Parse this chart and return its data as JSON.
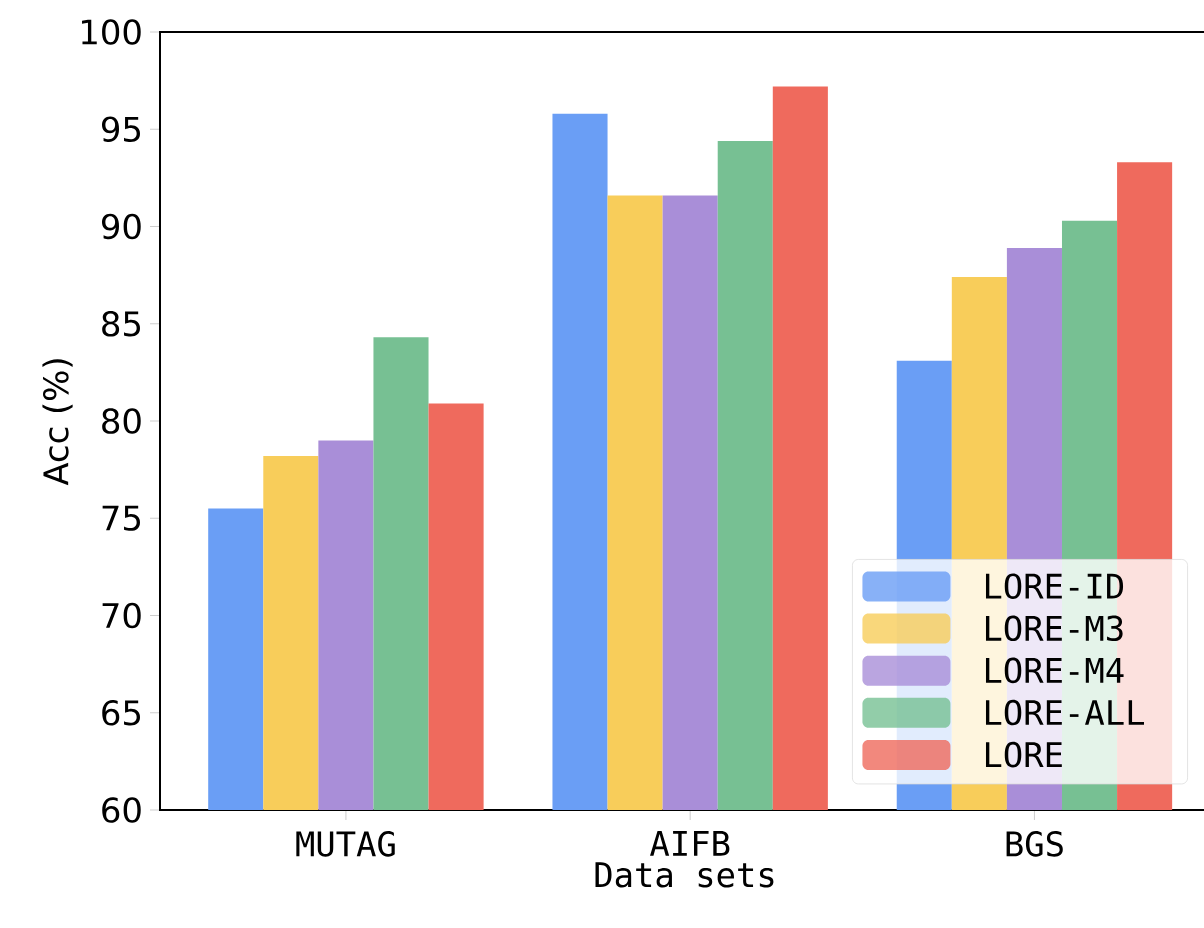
{
  "chart_data": {
    "type": "bar",
    "xlabel": "Data sets",
    "ylabel": "Acc (%)",
    "categories": [
      "MUTAG",
      "AIFB",
      "BGS"
    ],
    "series": [
      {
        "name": "LORE-ID",
        "color": "#6a9ef5",
        "values": [
          75.5,
          95.8,
          83.1
        ]
      },
      {
        "name": "LORE-M3",
        "color": "#f8cd5a",
        "values": [
          78.2,
          91.6,
          87.4
        ]
      },
      {
        "name": "LORE-M4",
        "color": "#a98ed8",
        "values": [
          79.0,
          91.6,
          88.9
        ]
      },
      {
        "name": "LORE-ALL",
        "color": "#77c093",
        "values": [
          84.3,
          94.4,
          90.3
        ]
      },
      {
        "name": "LORE",
        "color": "#ef6a5d",
        "values": [
          80.9,
          97.2,
          93.3
        ]
      }
    ],
    "ylim": [
      60,
      100
    ],
    "yticks": [
      60,
      65,
      70,
      75,
      80,
      85,
      90,
      95,
      100
    ],
    "legend": "bottom right"
  }
}
